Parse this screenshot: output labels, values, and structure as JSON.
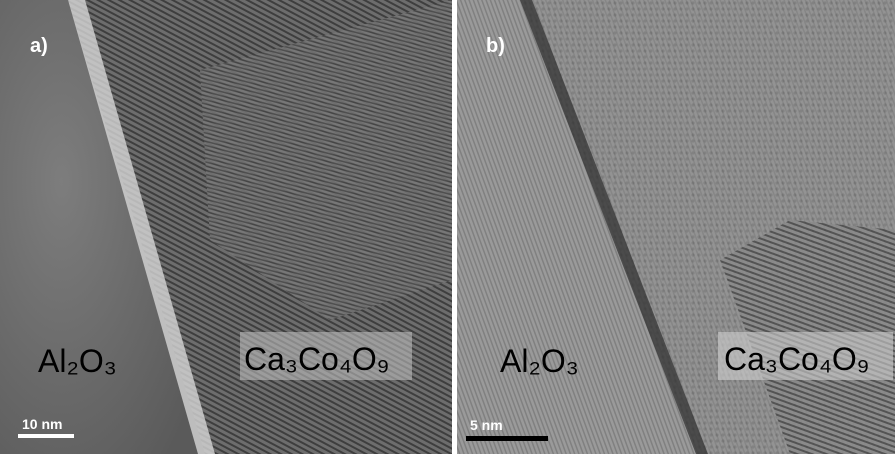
{
  "panels": [
    {
      "label": "a)",
      "substrate": "Al₂O₃",
      "film": "Ca₃Co₄O₉",
      "scale_bar": "10 nm"
    },
    {
      "label": "b)",
      "substrate": "Al₂O₃",
      "film": "Ca₃Co₄O₉",
      "scale_bar": "5 nm"
    }
  ]
}
